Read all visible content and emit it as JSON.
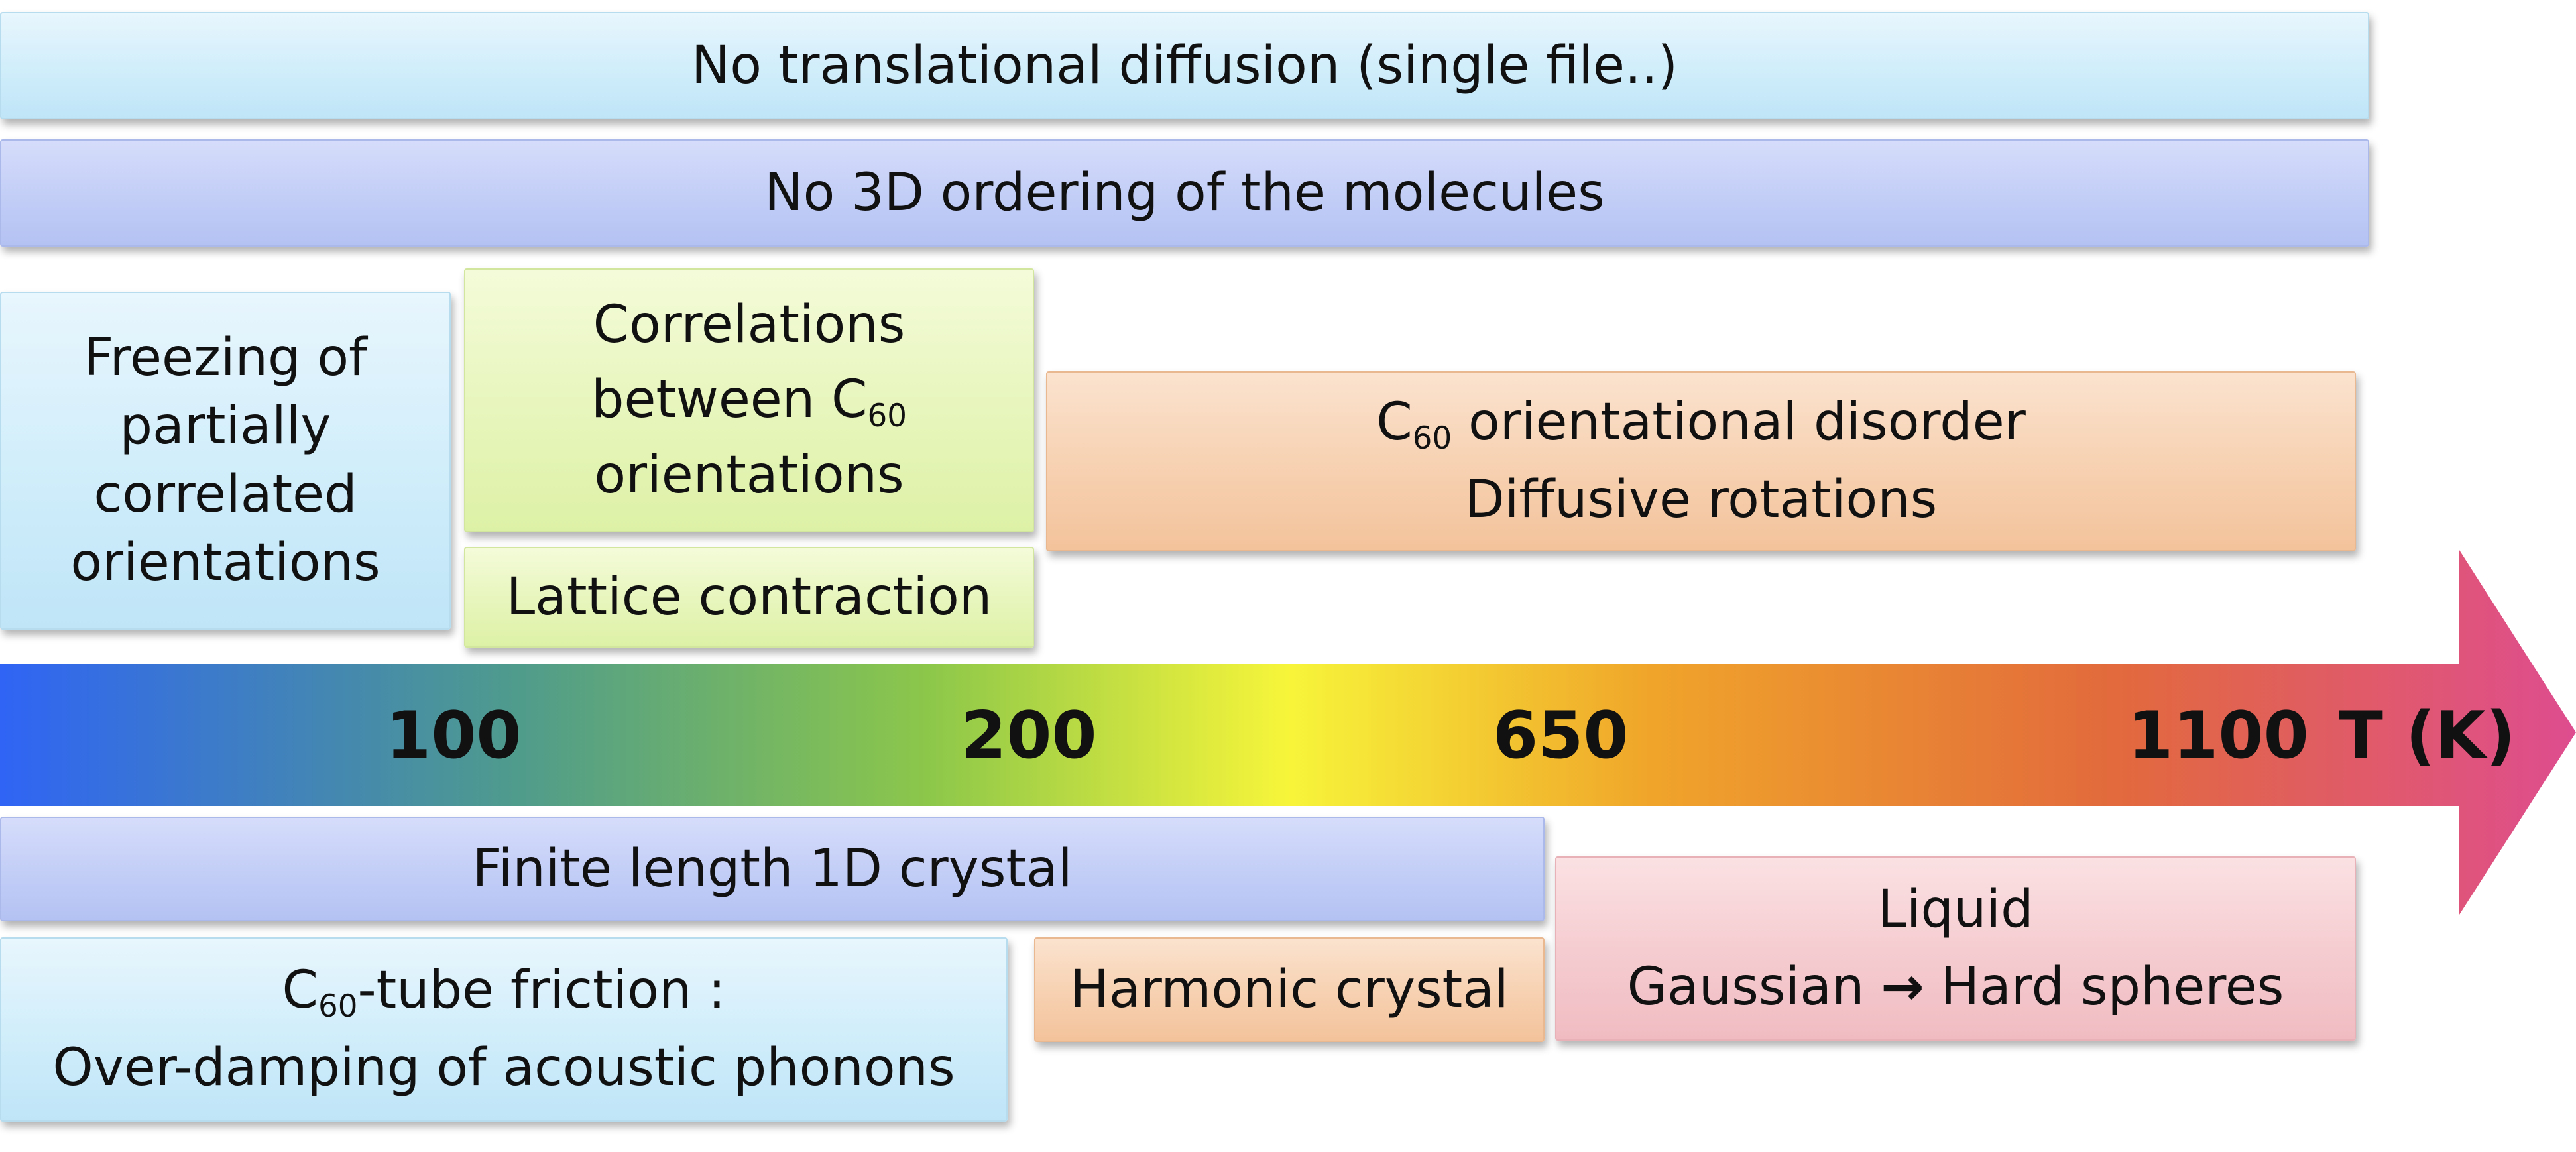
{
  "rows": {
    "translational": "No translational diffusion (single file..)",
    "ordering": "No 3D ordering of the molecules"
  },
  "above_axis": {
    "freezing": [
      "Freezing of",
      "partially",
      "correlated",
      "orientations"
    ],
    "correlations": {
      "line1": "Correlations",
      "line2_prefix": "between C",
      "line2_sub": "60",
      "line3": "orientations"
    },
    "lattice": "Lattice contraction",
    "disorder": {
      "line1_prefix": "C",
      "line1_sub": "60",
      "line1_suffix": " orientational disorder",
      "line2": "Diffusive rotations"
    }
  },
  "axis": {
    "ticks": [
      "100",
      "200",
      "650",
      "1100"
    ],
    "unit_label": "T (K)",
    "gradient_colors": [
      "#2f64f5",
      "#4f9b8c",
      "#8cc74a",
      "#f7f53a",
      "#f0a52a",
      "#e26a3c",
      "#de4d8f"
    ]
  },
  "below_axis": {
    "finite": "Finite length 1D crystal",
    "friction": {
      "line1_prefix": "C",
      "line1_sub": "60",
      "line1_suffix": "-tube friction :",
      "line2": "Over-damping of acoustic phonons"
    },
    "harmonic": "Harmonic crystal",
    "liquid": {
      "line1": "Liquid",
      "line2_left": "Gaussian",
      "arrow": "→",
      "line2_right": "Hard spheres"
    }
  }
}
